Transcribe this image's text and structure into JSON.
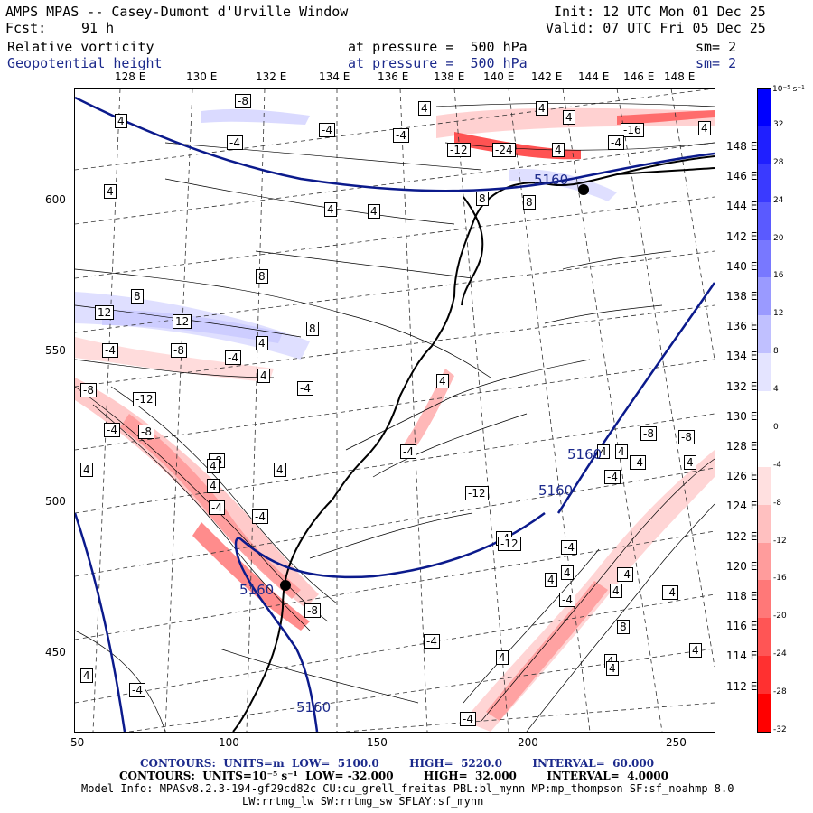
{
  "header": {
    "title": "AMPS MPAS -- Casey-Dumont d'Urville Window",
    "init": "Init: 12 UTC Mon 01 Dec 25",
    "fcst_label": "Fcst:",
    "fcst_value": "91 h",
    "valid": "Valid: 07 UTC Fri 05 Dec 25",
    "field1": "Relative vorticity",
    "field1_level": "at pressure =  500 hPa",
    "field1_sm": "sm= 2",
    "field2": "Geopotential height",
    "field2_level": "at pressure =  500 hPa",
    "field2_sm": "sm= 2"
  },
  "top_lon_labels": [
    "128 E",
    "130 E",
    "132 E",
    "134 E",
    "136 E",
    "138 E",
    "140 E",
    "142 E",
    "144 E",
    "146 E",
    "148 E"
  ],
  "right_lat_labels": [
    "148 E",
    "146 E",
    "144 E",
    "142 E",
    "140 E",
    "138 E",
    "136 E",
    "134 E",
    "132 E",
    "130 E",
    "128 E",
    "126 E",
    "124 E",
    "122 E",
    "120 E",
    "118 E",
    "116 E",
    "114 E",
    "112 E"
  ],
  "x_ticks": [
    "50",
    "100",
    "150",
    "200",
    "250"
  ],
  "y_ticks": [
    "600",
    "550",
    "500",
    "450"
  ],
  "colorbar": {
    "unit": "10⁻⁵ s⁻¹",
    "labels": [
      "32",
      "28",
      "24",
      "20",
      "16",
      "12",
      "8",
      "4",
      "0",
      "-4",
      "-8",
      "-12",
      "-16",
      "-20",
      "-24",
      "-28",
      "-32"
    ],
    "colors": [
      "#0000ff",
      "#1f1fff",
      "#3a3aff",
      "#5a5aff",
      "#7878ff",
      "#9a9aff",
      "#c0c0ff",
      "#e4e4ff",
      "#ffffff",
      "#ffffff",
      "#ffe0e0",
      "#ffc0c0",
      "#ff9c9c",
      "#ff7878",
      "#ff5555",
      "#ff3030",
      "#ff0000"
    ]
  },
  "height_labels": [
    "5160",
    "5160",
    "5160",
    "5160",
    "5160"
  ],
  "contour_labels": [
    "-8",
    "4",
    "4",
    "4",
    "4",
    "-4",
    "-4",
    "-4",
    "-12",
    "-24",
    "-16",
    "4",
    "8",
    "4",
    "4",
    "4",
    "-4",
    "4",
    "8",
    "8",
    "12",
    "12",
    "8",
    "8",
    "-4",
    "-8",
    "-4",
    "4",
    "4",
    "4",
    "-8",
    "-12",
    "-4",
    "-4",
    "-8",
    "-8",
    "4",
    "-4",
    "-4",
    "4",
    "4",
    "4",
    "-4",
    "-12",
    "4",
    "-8",
    "-8",
    "4",
    "4",
    "-4",
    "-4",
    "-4",
    "-4",
    "-12",
    "4",
    "4",
    "-4",
    "-4",
    "4",
    "-4",
    "8",
    "4",
    "4",
    "-4",
    "4",
    "4",
    "-4",
    "-8",
    "-4",
    "4"
  ],
  "footer": {
    "line1": "CONTOURS:  UNITS=m  LOW=  5100.0        HIGH=  5220.0        INTERVAL=  60.000",
    "line2": "CONTOURS:  UNITS=10⁻⁵ s⁻¹  LOW= -32.000        HIGH=  32.000        INTERVAL=  4.0000",
    "line3": "Model Info: MPASv8.2.3-194-gf29cd82c CU:cu_grell_freitas PBL:bl_mynn MP:mp_thompson SF:sf_noahmp 8.0",
    "line4": "LW:rrtmg_lw SW:rrtmg_sw SFLAY:sf_mynn"
  },
  "colors": {
    "height_contour": "#0b1a8c",
    "coast": "#000000"
  }
}
